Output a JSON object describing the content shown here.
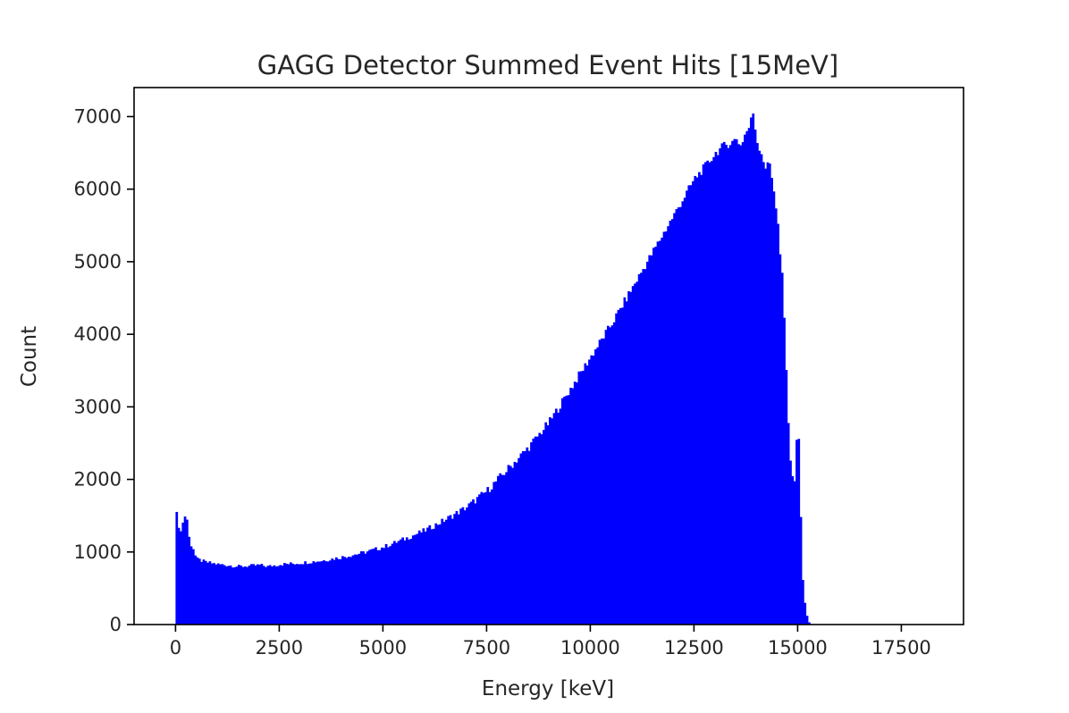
{
  "chart_data": {
    "type": "bar",
    "title": "GAGG Detector Summed Event Hits [15MeV]",
    "xlabel": "Energy [keV]",
    "ylabel": "Count",
    "xlim": [
      -1000,
      19000
    ],
    "ylim": [
      0,
      7400
    ],
    "bar_color": "#0000ff",
    "bin_width": 50,
    "xticks": [
      0,
      2500,
      5000,
      7500,
      10000,
      12500,
      15000,
      17500
    ],
    "xtick_labels": [
      "0",
      "2500",
      "5000",
      "7500",
      "10000",
      "12500",
      "15000",
      "17500"
    ],
    "yticks": [
      0,
      1000,
      2000,
      3000,
      4000,
      5000,
      6000,
      7000
    ],
    "ytick_labels": [
      "0",
      "1000",
      "2000",
      "3000",
      "4000",
      "5000",
      "6000",
      "7000"
    ],
    "grid": false,
    "legend": "none",
    "series": [
      {
        "x": [
          0,
          50,
          100,
          150,
          200,
          250,
          300,
          350,
          400,
          450,
          500,
          600,
          700,
          800,
          1000,
          1200,
          1500,
          1800,
          2000,
          2200,
          2500,
          2800,
          3000,
          3500,
          4000,
          4500,
          5000,
          5500,
          6000,
          6500,
          7000,
          7500,
          8000,
          8500,
          9000,
          9500,
          10000,
          10500,
          11000,
          11500,
          12000,
          12500,
          12800,
          13000,
          13200,
          13400,
          13500,
          13600,
          13700,
          13800,
          13900,
          14000,
          14100,
          14200,
          14300,
          14400,
          14500,
          14550,
          14600,
          14650,
          14700,
          14750,
          14800,
          14850,
          14900,
          14950,
          15000,
          15050,
          15100,
          15150,
          15200,
          15250
        ],
        "y": [
          1600,
          1300,
          1320,
          1400,
          1500,
          1450,
          1200,
          1100,
          1050,
          950,
          900,
          880,
          860,
          850,
          830,
          820,
          800,
          810,
          820,
          800,
          830,
          840,
          850,
          880,
          930,
          990,
          1070,
          1180,
          1300,
          1450,
          1620,
          1850,
          2150,
          2450,
          2800,
          3250,
          3700,
          4150,
          4650,
          5150,
          5650,
          6150,
          6350,
          6500,
          6600,
          6650,
          6700,
          6600,
          6750,
          6850,
          7050,
          6650,
          6500,
          6300,
          6350,
          6000,
          5500,
          5100,
          4800,
          4200,
          3500,
          2800,
          2200,
          2100,
          2000,
          2500,
          2600,
          1500,
          600,
          300,
          120,
          30
        ]
      }
    ]
  }
}
